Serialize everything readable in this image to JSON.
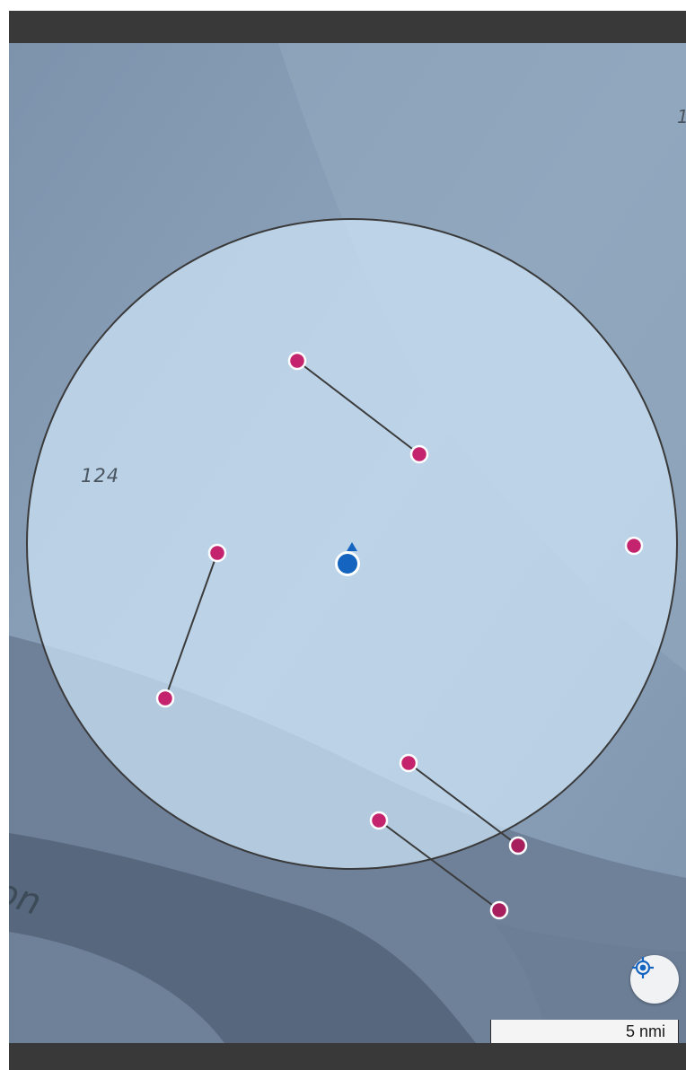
{
  "map": {
    "contour_label": "124",
    "place_label_fragment": "on",
    "edge_label_fragment": "1",
    "colors": {
      "ocean": "#8aa0b8",
      "shelf": "#6e8199",
      "deep_channel": "#4e5f74",
      "search_radius_fill": "#cfe4f8",
      "search_radius_stroke": "#3a3a3a",
      "waypoint": "#c4246e",
      "user_location": "#1565c0"
    },
    "user_location_icon": "location-dot-with-heading-icon",
    "search_radius_visible": true,
    "route_segments": 4,
    "waypoint_count": 9
  },
  "controls": {
    "locate_icon": "my-location-crosshair-icon"
  },
  "scale_bar": {
    "label": "5 nmi"
  }
}
